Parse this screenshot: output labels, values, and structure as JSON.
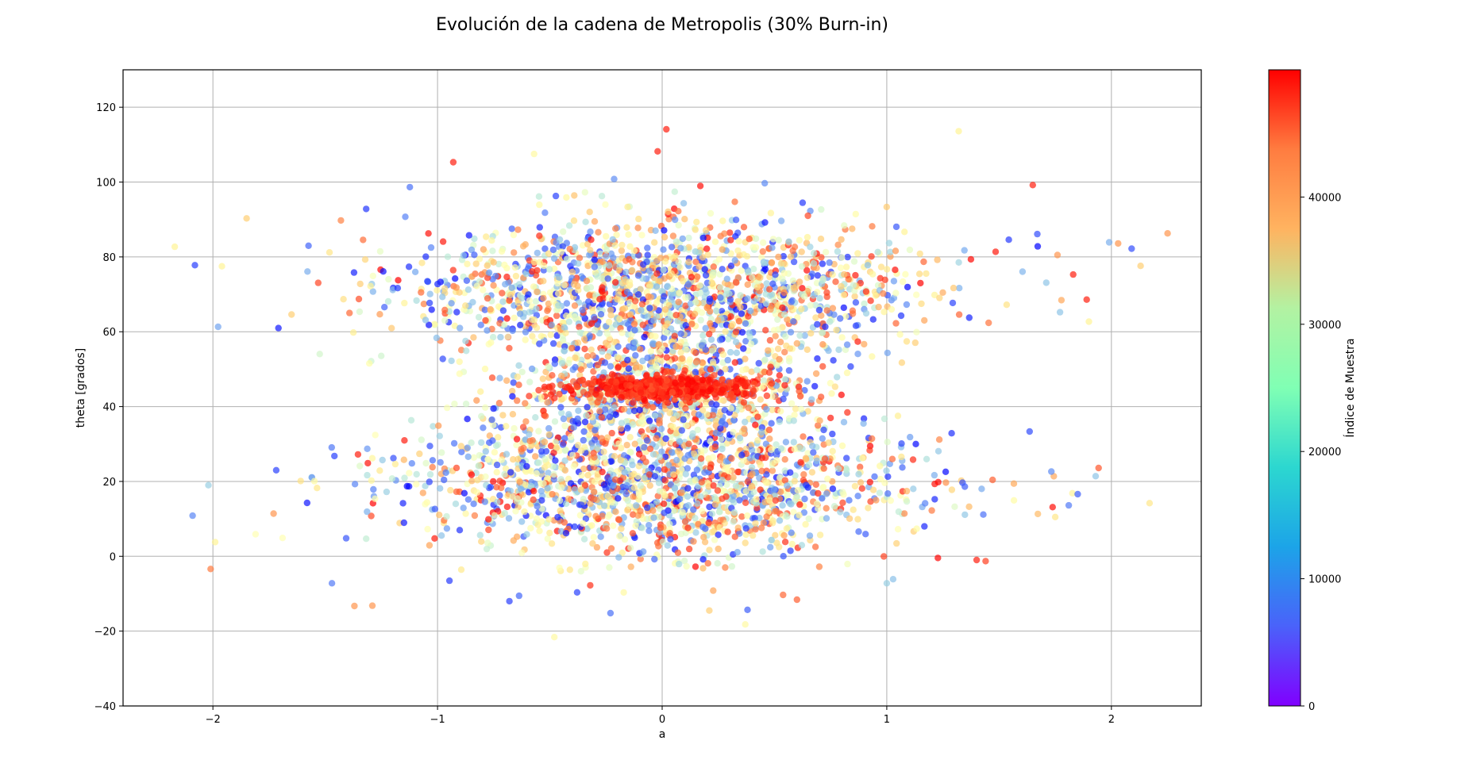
{
  "chart_data": {
    "type": "scatter",
    "title": "Evolución de la cadena de Metropolis (30% Burn-in)",
    "xlabel": "a",
    "ylabel": "theta [grados]",
    "xlim": [
      -2.4,
      2.4
    ],
    "ylim": [
      -40,
      130
    ],
    "xticks": [
      -2,
      -1,
      0,
      1,
      2
    ],
    "yticks": [
      -40,
      -20,
      0,
      20,
      40,
      60,
      80,
      100,
      120
    ],
    "grid": true,
    "marker_alpha": 0.7,
    "colormap": "rainbow",
    "colorbar": {
      "label": "Índice de Muestra",
      "range": [
        0,
        50000
      ],
      "ticks": [
        0,
        10000,
        20000,
        30000,
        40000
      ],
      "tick_labels": [
        "0",
        "10000",
        "20000",
        "30000",
        "40000"
      ]
    },
    "summary": {
      "n_points_approx": 35000,
      "dense_cluster": {
        "a_range": [
          -0.35,
          0.35
        ],
        "theta_center": 45,
        "color_index": "late samples (~45000-50000)"
      },
      "upper_lobe_theta_center": 70,
      "lower_lobe_theta_center": 20
    },
    "outlier_points": [
      {
        "x": -2.17,
        "y": 82.7,
        "c": 30000
      },
      {
        "x": -2.08,
        "y": 77.8,
        "c": 4000
      },
      {
        "x": -1.96,
        "y": 77.5,
        "c": 30000
      },
      {
        "x": -1.99,
        "y": 3.8,
        "c": 30000
      },
      {
        "x": -2.02,
        "y": 19.0,
        "c": 15000
      },
      {
        "x": -2.01,
        "y": -3.4,
        "c": 42000
      },
      {
        "x": -1.85,
        "y": 90.3,
        "c": 35000
      },
      {
        "x": -1.81,
        "y": 5.9,
        "c": 25000
      },
      {
        "x": -1.73,
        "y": 11.4,
        "c": 40000
      },
      {
        "x": -1.69,
        "y": 4.9,
        "c": 25000
      },
      {
        "x": -1.65,
        "y": 64.6,
        "c": 35000
      },
      {
        "x": -1.29,
        "y": -13.2,
        "c": 40000
      },
      {
        "x": -1.37,
        "y": -13.3,
        "c": 40000
      },
      {
        "x": -1.47,
        "y": -7.2,
        "c": 8000
      },
      {
        "x": -0.48,
        "y": -21.6,
        "c": 28000
      },
      {
        "x": -0.68,
        "y": -12.0,
        "c": 4000
      },
      {
        "x": 0.38,
        "y": -14.3,
        "c": 6000
      },
      {
        "x": 0.37,
        "y": -18.2,
        "c": 28000
      },
      {
        "x": 0.21,
        "y": -14.5,
        "c": 35000
      },
      {
        "x": 0.6,
        "y": -11.6,
        "c": 44000
      },
      {
        "x": 1.0,
        "y": -7.2,
        "c": 15000
      },
      {
        "x": 1.32,
        "y": 113.6,
        "c": 30000
      },
      {
        "x": -0.57,
        "y": 107.5,
        "c": 28000
      },
      {
        "x": -0.02,
        "y": 108.2,
        "c": 48000
      },
      {
        "x": -0.93,
        "y": 105.3,
        "c": 48000
      },
      {
        "x": 1.65,
        "y": 99.2,
        "c": 48000
      },
      {
        "x": 2.25,
        "y": 86.3,
        "c": 40000
      },
      {
        "x": 2.09,
        "y": 82.2,
        "c": 5000
      },
      {
        "x": 2.03,
        "y": 83.6,
        "c": 40000
      },
      {
        "x": 1.99,
        "y": 83.9,
        "c": 12000
      },
      {
        "x": 2.13,
        "y": 77.6,
        "c": 35000
      },
      {
        "x": 1.89,
        "y": 68.6,
        "c": 48000
      },
      {
        "x": 1.9,
        "y": 62.7,
        "c": 30000
      },
      {
        "x": 2.17,
        "y": 14.2,
        "c": 32000
      },
      {
        "x": 1.93,
        "y": 21.4,
        "c": 14000
      },
      {
        "x": 1.85,
        "y": 16.6,
        "c": 6000
      },
      {
        "x": 1.81,
        "y": 13.6,
        "c": 8000
      },
      {
        "x": 1.75,
        "y": 10.5,
        "c": 32000
      },
      {
        "x": 1.83,
        "y": 75.3,
        "c": 48000
      },
      {
        "x": 1.76,
        "y": 80.5,
        "c": 40000
      },
      {
        "x": 1.71,
        "y": 73.1,
        "c": 14000
      },
      {
        "x": 1.67,
        "y": 86.1,
        "c": 5000
      },
      {
        "x": 1.4,
        "y": -1.0,
        "c": 48000
      },
      {
        "x": 1.44,
        "y": -1.3,
        "c": 46000
      }
    ]
  }
}
